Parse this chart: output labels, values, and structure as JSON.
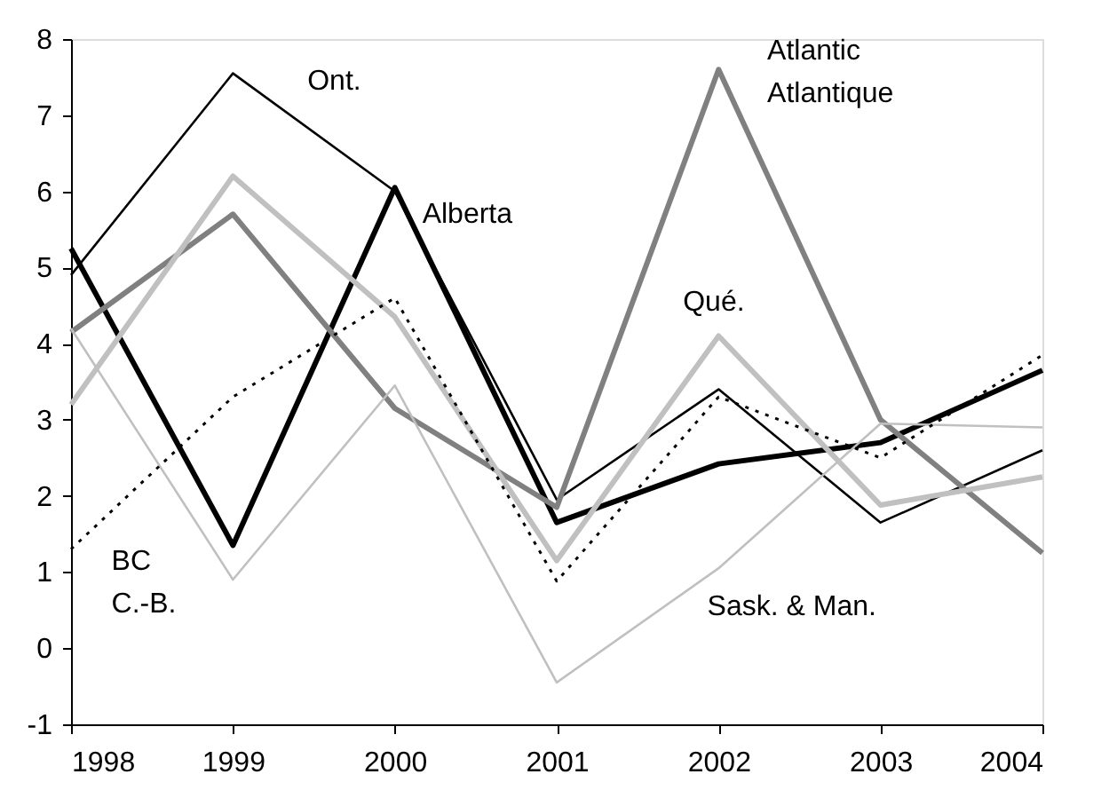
{
  "chart_data": {
    "type": "line",
    "x": [
      1998,
      1999,
      2000,
      2001,
      2002,
      2003,
      2004
    ],
    "xlim": [
      1998,
      2004
    ],
    "xticks": [
      1998,
      1999,
      2000,
      2001,
      2002,
      2003,
      2004
    ],
    "ylim": [
      -1,
      8
    ],
    "yticks": [
      -1,
      0,
      1,
      2,
      3,
      4,
      5,
      6,
      7,
      8
    ],
    "grid": false,
    "series": [
      {
        "name": "Ont.",
        "color": "#000000",
        "values": [
          4.9,
          7.55,
          6.0,
          1.95,
          3.4,
          1.65,
          2.6
        ]
      },
      {
        "name": "Alberta",
        "color": "#000000",
        "values": [
          5.25,
          1.35,
          6.05,
          1.65,
          2.42,
          2.7,
          3.65
        ]
      },
      {
        "name": "Atlantic\nAtlantique",
        "color": "#808080",
        "values": [
          4.15,
          5.7,
          3.15,
          1.85,
          7.6,
          3.0,
          1.25
        ]
      },
      {
        "name": "Qué.",
        "color": "#c0c0c0",
        "values": [
          3.2,
          6.2,
          4.35,
          1.15,
          4.1,
          1.88,
          2.25
        ]
      },
      {
        "name": "Sask. & Man.",
        "color": "#c0c0c0",
        "values": [
          4.2,
          0.9,
          3.45,
          -0.45,
          1.05,
          2.95,
          2.9
        ]
      },
      {
        "name": "BC\nC.-B.",
        "color": "#000000",
        "line_style": "dotted",
        "values": [
          1.3,
          3.3,
          4.6,
          0.88,
          3.3,
          2.5,
          3.85
        ]
      }
    ]
  }
}
